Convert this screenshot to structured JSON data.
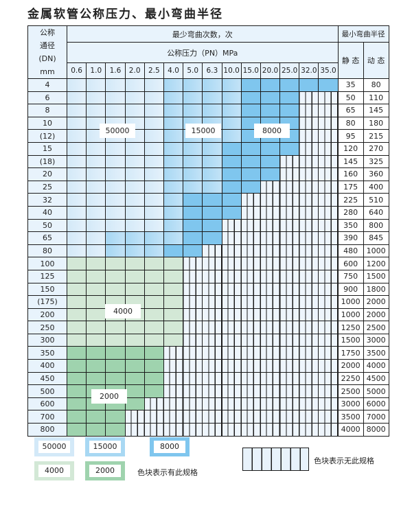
{
  "title": "金属软管公称压力、最小弯曲半径",
  "header": {
    "dn_label": [
      "公称",
      "通径",
      "(DN)",
      "mm"
    ],
    "cycles_label": "最少弯曲次数，次",
    "pressure_label": "公称压力（PN）MPa",
    "radius_label": "最小弯曲半径",
    "static_label": "静 态",
    "dynamic_label": "动 态",
    "pressures": [
      "0.6",
      "1.0",
      "1.6",
      "2.0",
      "2.5",
      "4.0",
      "5.0",
      "6.3",
      "10.0",
      "15.0",
      "20.0",
      "25.0",
      "32.0",
      "35.0"
    ]
  },
  "categories": {
    "A": {
      "cycles": "50000",
      "color": "#d8ecf9"
    },
    "B": {
      "cycles": "15000",
      "color": "#a8d8f3"
    },
    "C": {
      "cycles": "8000",
      "color": "#7fc6ee"
    },
    "G": {
      "cycles": "4000",
      "color": "#d3e8d6"
    },
    "H": {
      "cycles": "2000",
      "color": "#9fd3ae"
    },
    "X": {
      "cycles": "",
      "color": "#eef5fc"
    }
  },
  "rows": [
    {
      "dn": "4",
      "static": "35",
      "dynamic": "80",
      "cells": "AAAAABBBBCCCCC"
    },
    {
      "dn": "6",
      "static": "50",
      "dynamic": "110",
      "cells": "AAAAABBBBCCCXX"
    },
    {
      "dn": "8",
      "static": "65",
      "dynamic": "145",
      "cells": "AAAAABBBBCCCXX"
    },
    {
      "dn": "10",
      "static": "80",
      "dynamic": "180",
      "cells": "AAAAABBBBCCCXX"
    },
    {
      "dn": "(12)",
      "static": "95",
      "dynamic": "215",
      "cells": "AAAAABBBBCCCXX"
    },
    {
      "dn": "15",
      "static": "120",
      "dynamic": "270",
      "cells": "AAAAABBBCCCCXX"
    },
    {
      "dn": "(18)",
      "static": "145",
      "dynamic": "325",
      "cells": "AAAAABBBCCCXXX"
    },
    {
      "dn": "20",
      "static": "160",
      "dynamic": "360",
      "cells": "AAAAABBBCCCXXX"
    },
    {
      "dn": "25",
      "static": "175",
      "dynamic": "400",
      "cells": "AAAAABBBCCXXXX"
    },
    {
      "dn": "32",
      "static": "225",
      "dynamic": "510",
      "cells": "AAAAABCCCXXXXX"
    },
    {
      "dn": "40",
      "static": "280",
      "dynamic": "640",
      "cells": "AAAAABCCCXXXXX"
    },
    {
      "dn": "50",
      "static": "350",
      "dynamic": "800",
      "cells": "AAAAABCCXXXXXX"
    },
    {
      "dn": "65",
      "static": "390",
      "dynamic": "845",
      "cells": "AABBBBCCXXXXXX"
    },
    {
      "dn": "80",
      "static": "480",
      "dynamic": "1000",
      "cells": "AABBBCCXXXXXXX"
    },
    {
      "dn": "100",
      "static": "600",
      "dynamic": "1200",
      "cells": "GGGGGGXXXXXXXX"
    },
    {
      "dn": "125",
      "static": "750",
      "dynamic": "1500",
      "cells": "GGGGGGXXXXXXXX"
    },
    {
      "dn": "150",
      "static": "900",
      "dynamic": "1800",
      "cells": "GGGGGGXXXXXXXX"
    },
    {
      "dn": "(175)",
      "static": "1000",
      "dynamic": "2000",
      "cells": "GGGGGGXXXXXXXX"
    },
    {
      "dn": "200",
      "static": "1000",
      "dynamic": "2000",
      "cells": "GGGGGGXXXXXXXX"
    },
    {
      "dn": "250",
      "static": "1250",
      "dynamic": "2500",
      "cells": "GGGGGGXXXXXXXX"
    },
    {
      "dn": "300",
      "static": "1500",
      "dynamic": "3000",
      "cells": "GGGGGGXXXXXXXX"
    },
    {
      "dn": "350",
      "static": "1750",
      "dynamic": "3500",
      "cells": "HHHHHXXXXXXXXX"
    },
    {
      "dn": "400",
      "static": "2000",
      "dynamic": "4000",
      "cells": "HHHHHXXXXXXXXX"
    },
    {
      "dn": "450",
      "static": "2250",
      "dynamic": "4500",
      "cells": "HHHHHXXXXXXXXX"
    },
    {
      "dn": "500",
      "static": "2500",
      "dynamic": "5000",
      "cells": "HHHHHXXXXXXXXX"
    },
    {
      "dn": "600",
      "static": "3000",
      "dynamic": "6000",
      "cells": "HHHHXXXXXXXXXX"
    },
    {
      "dn": "700",
      "static": "3500",
      "dynamic": "7000",
      "cells": "HHHXXXXXXXXXXX"
    },
    {
      "dn": "800",
      "static": "4000",
      "dynamic": "8000",
      "cells": "HHHXXXXXXXXXXX"
    }
  ],
  "region_labels": {
    "A": "50000",
    "B": "15000",
    "C": "8000",
    "G": "4000",
    "H": "2000"
  },
  "legend": {
    "items": [
      "50000",
      "15000",
      "8000",
      "4000",
      "2000"
    ],
    "has_spec_note": "色块表示有此规格",
    "no_spec_note": "色块表示无此规格"
  }
}
